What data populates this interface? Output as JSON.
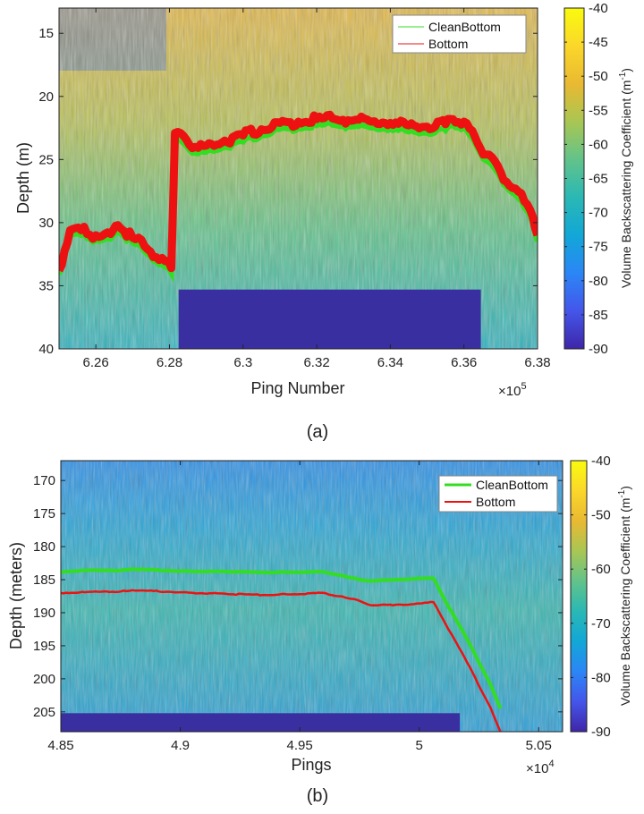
{
  "colors": {
    "clean_bottom": "#33dd22",
    "bottom": "#ee1111",
    "yellow": "#f8f82a",
    "deep_blue": "#3a2fa0",
    "cmap": [
      "#3e26a8",
      "#4456ea",
      "#2b86f6",
      "#12a7d7",
      "#2ab8b4",
      "#62c38a",
      "#a9c653",
      "#e9b932",
      "#fbd72a",
      "#f9fb0e"
    ]
  },
  "chart_data": [
    {
      "type": "heatmap",
      "panel": "(a)",
      "caption": "(a)",
      "xlabel": "Ping Number",
      "ylabel": "Depth (m)",
      "xlim": [
        6.25,
        6.38
      ],
      "ylim": [
        13,
        40
      ],
      "x_multiplier": "×10^5",
      "x_multiplier_base": "×10",
      "x_multiplier_exp": "5",
      "xticks": [
        6.26,
        6.28,
        6.3,
        6.32,
        6.34,
        6.36,
        6.38
      ],
      "xtick_labels": [
        "6.26",
        "6.28",
        "6.3",
        "6.32",
        "6.34",
        "6.36",
        "6.38"
      ],
      "yticks": [
        15,
        20,
        25,
        30,
        35,
        40
      ],
      "ytick_labels": [
        "15",
        "20",
        "25",
        "30",
        "35",
        "40"
      ],
      "colorbar": {
        "label": "Volume Backscattering Coefficient (m",
        "label_exp": "-1",
        "label_close": ")",
        "range": [
          -90,
          -40
        ],
        "ticks": [
          -40,
          -45,
          -50,
          -55,
          -60,
          -65,
          -70,
          -75,
          -80,
          -85,
          -90
        ],
        "tick_labels": [
          "-40",
          "-45",
          "-50",
          "-55",
          "-60",
          "-65",
          "-70",
          "-75",
          "-80",
          "-85",
          "-90"
        ]
      },
      "legend": [
        "CleanBottom",
        "Bottom"
      ],
      "series": [
        {
          "name": "Bottom",
          "x": [
            6.25,
            6.253,
            6.256,
            6.26,
            6.264,
            6.266,
            6.27,
            6.274,
            6.278,
            6.2805,
            6.2815,
            6.283,
            6.287,
            6.29,
            6.295,
            6.3,
            6.305,
            6.31,
            6.315,
            6.32,
            6.325,
            6.33,
            6.335,
            6.34,
            6.345,
            6.35,
            6.355,
            6.357,
            6.36,
            6.363,
            6.366,
            6.37,
            6.374,
            6.378,
            6.38
          ],
          "y": [
            33.8,
            30.6,
            30.6,
            31.0,
            30.9,
            30.2,
            31.2,
            32.1,
            32.8,
            33.6,
            22.9,
            22.9,
            24.0,
            23.9,
            23.5,
            23.1,
            22.6,
            22.1,
            22.0,
            21.8,
            21.8,
            21.9,
            22.0,
            22.1,
            22.3,
            22.4,
            22.2,
            21.8,
            22.0,
            23.2,
            24.6,
            26.0,
            27.3,
            29.0,
            31.0
          ]
        },
        {
          "name": "CleanBottom",
          "x": [
            6.25,
            6.253,
            6.256,
            6.26,
            6.264,
            6.266,
            6.27,
            6.274,
            6.278,
            6.2805,
            6.2815,
            6.283,
            6.287,
            6.29,
            6.295,
            6.3,
            6.305,
            6.31,
            6.315,
            6.32,
            6.325,
            6.33,
            6.335,
            6.34,
            6.345,
            6.35,
            6.355,
            6.357,
            6.36,
            6.363,
            6.366,
            6.37,
            6.374,
            6.378,
            6.38
          ],
          "y": [
            34.1,
            31.0,
            31.0,
            31.4,
            31.3,
            30.7,
            31.6,
            32.5,
            33.3,
            34.0,
            23.4,
            23.5,
            24.5,
            24.4,
            24.0,
            23.6,
            23.1,
            22.6,
            22.5,
            22.3,
            22.3,
            22.4,
            22.5,
            22.6,
            22.8,
            22.9,
            22.7,
            22.3,
            22.5,
            23.7,
            25.1,
            26.5,
            27.8,
            29.5,
            31.5
          ]
        }
      ],
      "blanked_region": {
        "x": [
          6.2825,
          6.3646
        ],
        "y": [
          35.3,
          40
        ]
      }
    },
    {
      "type": "heatmap",
      "panel": "(b)",
      "caption": "(b)",
      "xlabel": "Pings",
      "ylabel": "Depth (meters)",
      "xlim": [
        4.85,
        5.06
      ],
      "ylim": [
        167,
        208
      ],
      "x_multiplier": "×10^4",
      "x_multiplier_base": "×10",
      "x_multiplier_exp": "4",
      "xticks": [
        4.85,
        4.9,
        4.95,
        5.0,
        5.05
      ],
      "xtick_labels": [
        "4.85",
        "4.9",
        "4.95",
        "5",
        "5.05"
      ],
      "yticks": [
        170,
        175,
        180,
        185,
        190,
        195,
        200,
        205
      ],
      "ytick_labels": [
        "170",
        "175",
        "180",
        "185",
        "190",
        "195",
        "200",
        "205"
      ],
      "colorbar": {
        "label": "Volume Backscattering Coefficient (m",
        "label_exp": "-1",
        "label_close": ")",
        "range": [
          -90,
          -40
        ],
        "ticks": [
          -40,
          -50,
          -60,
          -70,
          -80,
          -90
        ],
        "tick_labels": [
          "-40",
          "-50",
          "-60",
          "-70",
          "-80",
          "-90"
        ]
      },
      "legend": [
        "CleanBottom",
        "Bottom"
      ],
      "series": [
        {
          "name": "Bottom",
          "x": [
            4.85,
            4.86,
            4.875,
            4.88,
            4.9,
            4.92,
            4.94,
            4.96,
            4.97,
            4.975,
            4.98,
            4.99,
            5.0,
            5.006,
            5.01,
            5.02,
            5.03,
            5.034
          ],
          "y": [
            187.0,
            186.9,
            186.8,
            186.6,
            186.9,
            187.2,
            187.3,
            187.0,
            187.8,
            188.2,
            188.9,
            188.8,
            188.6,
            188.4,
            191.0,
            197.5,
            204.5,
            208.0
          ]
        },
        {
          "name": "CleanBottom",
          "x": [
            4.85,
            4.86,
            4.875,
            4.88,
            4.9,
            4.92,
            4.94,
            4.96,
            4.97,
            4.975,
            4.98,
            4.99,
            5.0,
            5.006,
            5.01,
            5.02,
            5.03,
            5.034
          ],
          "y": [
            183.8,
            183.6,
            183.6,
            183.4,
            183.7,
            183.8,
            183.9,
            183.8,
            184.6,
            185.0,
            185.2,
            185.0,
            184.8,
            184.8,
            187.6,
            194.0,
            201.0,
            204.5
          ]
        }
      ],
      "blanked_region": {
        "x": [
          4.85,
          5.017
        ],
        "y": [
          205.2,
          208
        ]
      }
    }
  ]
}
